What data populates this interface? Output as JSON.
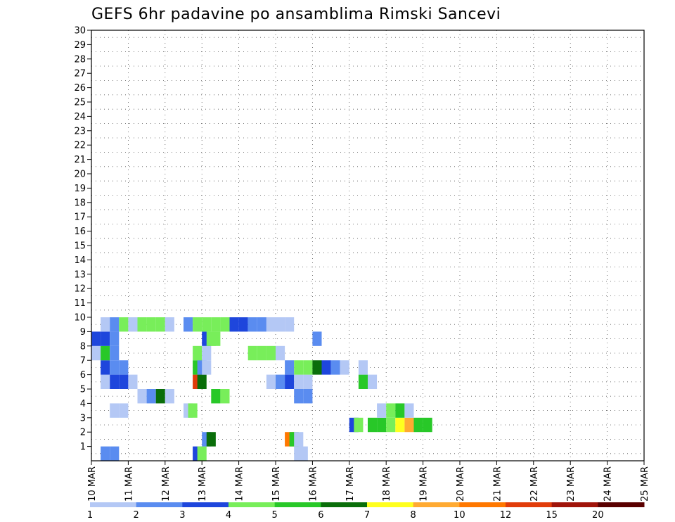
{
  "chart_data": {
    "type": "heatmap",
    "title": "GEFS 6hr padavine po ansamblima Rimski Sancevi",
    "xlabel": "",
    "ylabel": "",
    "y_ticks": [
      "1",
      "2",
      "3",
      "4",
      "5",
      "6",
      "7",
      "8",
      "9",
      "10",
      "11",
      "12",
      "13",
      "14",
      "15",
      "16",
      "17",
      "18",
      "19",
      "20",
      "21",
      "22",
      "23",
      "24",
      "25",
      "26",
      "27",
      "28",
      "29",
      "30"
    ],
    "ylim": [
      0,
      30
    ],
    "x_ticks": [
      "10 MAR",
      "11 MAR",
      "12 MAR",
      "13 MAR",
      "14 MAR",
      "15 MAR",
      "16 MAR",
      "17 MAR",
      "18 MAR",
      "19 MAR",
      "20 MAR",
      "21 MAR",
      "22 MAR",
      "23 MAR",
      "24 MAR",
      "25 MAR"
    ],
    "x_unit": "6-hour step (4 steps per day, step 0 = 10 MAR)",
    "xlim": [
      0,
      60
    ],
    "grid": "dotted",
    "colorbar": {
      "labels": [
        "1",
        "2",
        "3",
        "4",
        "5",
        "6",
        "7",
        "8",
        "10",
        "12",
        "15",
        "20"
      ],
      "colors": [
        "#b4c8f5",
        "#5a8cf0",
        "#1e46dc",
        "#78ee5a",
        "#28c828",
        "#0a6e0a",
        "#ffff1e",
        "#ffaa32",
        "#ff7800",
        "#e13c0a",
        "#a0140a",
        "#5a0000"
      ]
    },
    "cells": [
      {
        "member": 0,
        "step": 1,
        "level": 1
      },
      {
        "member": 0,
        "step": 2,
        "level": 1
      },
      {
        "member": 0,
        "step": 11,
        "level": 2
      },
      {
        "member": 0,
        "step": 11.5,
        "level": 3
      },
      {
        "member": 0,
        "step": 22,
        "level": 0
      },
      {
        "member": 0,
        "step": 22.5,
        "level": 0
      },
      {
        "member": 1,
        "step": 12,
        "level": 1
      },
      {
        "member": 1,
        "step": 12.5,
        "level": 5
      },
      {
        "member": 1,
        "step": 21,
        "level": 8
      },
      {
        "member": 1,
        "step": 21.5,
        "level": 4
      },
      {
        "member": 1,
        "step": 22,
        "level": 0
      },
      {
        "member": 2,
        "step": 28,
        "level": 2
      },
      {
        "member": 2,
        "step": 28.5,
        "level": 3
      },
      {
        "member": 2,
        "step": 30,
        "level": 4
      },
      {
        "member": 2,
        "step": 31,
        "level": 4
      },
      {
        "member": 2,
        "step": 32,
        "level": 3
      },
      {
        "member": 2,
        "step": 33,
        "level": 6
      },
      {
        "member": 2,
        "step": 34,
        "level": 7
      },
      {
        "member": 2,
        "step": 35,
        "level": 4
      },
      {
        "member": 2,
        "step": 36,
        "level": 4
      },
      {
        "member": 3,
        "step": 2,
        "level": 0
      },
      {
        "member": 3,
        "step": 3,
        "level": 0
      },
      {
        "member": 3,
        "step": 10,
        "level": 0
      },
      {
        "member": 3,
        "step": 10.5,
        "level": 3
      },
      {
        "member": 3,
        "step": 31,
        "level": 0
      },
      {
        "member": 3,
        "step": 32,
        "level": 3
      },
      {
        "member": 3,
        "step": 33,
        "level": 4
      },
      {
        "member": 3,
        "step": 34,
        "level": 0
      },
      {
        "member": 4,
        "step": 5,
        "level": 0
      },
      {
        "member": 4,
        "step": 6,
        "level": 1
      },
      {
        "member": 4,
        "step": 7,
        "level": 5
      },
      {
        "member": 4,
        "step": 8,
        "level": 0
      },
      {
        "member": 4,
        "step": 13,
        "level": 4
      },
      {
        "member": 4,
        "step": 14,
        "level": 3
      },
      {
        "member": 4,
        "step": 22,
        "level": 1
      },
      {
        "member": 4,
        "step": 23,
        "level": 1
      },
      {
        "member": 5,
        "step": 1,
        "level": 0
      },
      {
        "member": 5,
        "step": 2,
        "level": 2
      },
      {
        "member": 5,
        "step": 3,
        "level": 2
      },
      {
        "member": 5,
        "step": 4,
        "level": 0
      },
      {
        "member": 5,
        "step": 11,
        "level": 9
      },
      {
        "member": 5,
        "step": 11.5,
        "level": 5
      },
      {
        "member": 5,
        "step": 19,
        "level": 0
      },
      {
        "member": 5,
        "step": 20,
        "level": 1
      },
      {
        "member": 5,
        "step": 21,
        "level": 2
      },
      {
        "member": 5,
        "step": 22,
        "level": 0
      },
      {
        "member": 5,
        "step": 23,
        "level": 0
      },
      {
        "member": 5,
        "step": 29,
        "level": 4
      },
      {
        "member": 5,
        "step": 30,
        "level": 0
      },
      {
        "member": 6,
        "step": 1,
        "level": 2
      },
      {
        "member": 6,
        "step": 2,
        "level": 1
      },
      {
        "member": 6,
        "step": 3,
        "level": 1
      },
      {
        "member": 6,
        "step": 11,
        "level": 4
      },
      {
        "member": 6,
        "step": 11.5,
        "level": 1
      },
      {
        "member": 6,
        "step": 12,
        "level": 0
      },
      {
        "member": 6,
        "step": 21,
        "level": 1
      },
      {
        "member": 6,
        "step": 22,
        "level": 3
      },
      {
        "member": 6,
        "step": 23,
        "level": 3
      },
      {
        "member": 6,
        "step": 24,
        "level": 5
      },
      {
        "member": 6,
        "step": 25,
        "level": 2
      },
      {
        "member": 6,
        "step": 26,
        "level": 1
      },
      {
        "member": 6,
        "step": 27,
        "level": 0
      },
      {
        "member": 6,
        "step": 29,
        "level": 0
      },
      {
        "member": 7,
        "step": 0,
        "level": 0
      },
      {
        "member": 7,
        "step": 1,
        "level": 4
      },
      {
        "member": 7,
        "step": 2,
        "level": 1
      },
      {
        "member": 7,
        "step": 11,
        "level": 3
      },
      {
        "member": 7,
        "step": 12,
        "level": 0
      },
      {
        "member": 7,
        "step": 17,
        "level": 3
      },
      {
        "member": 7,
        "step": 18,
        "level": 3
      },
      {
        "member": 7,
        "step": 19,
        "level": 3
      },
      {
        "member": 7,
        "step": 20,
        "level": 0
      },
      {
        "member": 8,
        "step": 0,
        "level": 2
      },
      {
        "member": 8,
        "step": 1,
        "level": 2
      },
      {
        "member": 8,
        "step": 2,
        "level": 1
      },
      {
        "member": 8,
        "step": 12,
        "level": 2
      },
      {
        "member": 8,
        "step": 12.5,
        "level": 3
      },
      {
        "member": 8,
        "step": 13,
        "level": 3
      },
      {
        "member": 8,
        "step": 24,
        "level": 1
      },
      {
        "member": 9,
        "step": 1,
        "level": 0
      },
      {
        "member": 9,
        "step": 2,
        "level": 1
      },
      {
        "member": 9,
        "step": 3,
        "level": 3
      },
      {
        "member": 9,
        "step": 4,
        "level": 0
      },
      {
        "member": 9,
        "step": 5,
        "level": 3
      },
      {
        "member": 9,
        "step": 6,
        "level": 3
      },
      {
        "member": 9,
        "step": 7,
        "level": 3
      },
      {
        "member": 9,
        "step": 8,
        "level": 0
      },
      {
        "member": 9,
        "step": 10,
        "level": 1
      },
      {
        "member": 9,
        "step": 11,
        "level": 3
      },
      {
        "member": 9,
        "step": 12,
        "level": 3
      },
      {
        "member": 9,
        "step": 13,
        "level": 3
      },
      {
        "member": 9,
        "step": 14,
        "level": 3
      },
      {
        "member": 9,
        "step": 15,
        "level": 2
      },
      {
        "member": 9,
        "step": 16,
        "level": 2
      },
      {
        "member": 9,
        "step": 17,
        "level": 1
      },
      {
        "member": 9,
        "step": 18,
        "level": 1
      },
      {
        "member": 9,
        "step": 19,
        "level": 0
      },
      {
        "member": 9,
        "step": 20,
        "level": 0
      },
      {
        "member": 9,
        "step": 21,
        "level": 0
      }
    ]
  }
}
